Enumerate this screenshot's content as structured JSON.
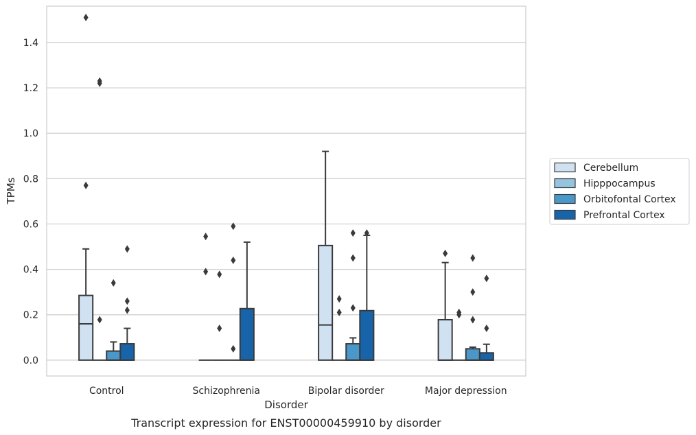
{
  "caption": "Transcript expression for ENST00000459910 by disorder",
  "chart_data": {
    "type": "box",
    "xlabel": "Disorder",
    "ylabel": "TPMs",
    "ylim": [
      -0.07,
      1.56
    ],
    "yticks": [
      "0.0",
      "0.2",
      "0.4",
      "0.6",
      "0.8",
      "1.0",
      "1.2",
      "1.4"
    ],
    "ytick_values": [
      0,
      0.2,
      0.4,
      0.6,
      0.8,
      1.0,
      1.2,
      1.4
    ],
    "grid": true,
    "legend_position": "right",
    "categories": [
      "Control",
      "Schizophrenia",
      "Bipolar disorder",
      "Major depression"
    ],
    "series": [
      {
        "name": "Cerebellum",
        "color": "#d0e1f2",
        "boxes": [
          {
            "q1": 0.0,
            "median": 0.16,
            "q3": 0.285,
            "whisker_low": 0.0,
            "whisker_high": 0.49,
            "outliers": [
              0.77,
              1.51
            ]
          },
          {
            "q1": 0.0,
            "median": 0.0,
            "q3": 0.0,
            "whisker_low": 0.0,
            "whisker_high": 0.0,
            "outliers": [
              0.39,
              0.545
            ]
          },
          {
            "q1": 0.0,
            "median": 0.155,
            "q3": 0.505,
            "whisker_low": 0.0,
            "whisker_high": 0.92,
            "outliers": []
          },
          {
            "q1": 0.0,
            "median": 0.0,
            "q3": 0.178,
            "whisker_low": 0.0,
            "whisker_high": 0.43,
            "outliers": [
              0.47
            ]
          }
        ]
      },
      {
        "name": "Hipppocampus",
        "color": "#94c4df",
        "boxes": [
          {
            "q1": 0.0,
            "median": 0.0,
            "q3": 0.0,
            "whisker_low": 0.0,
            "whisker_high": 0.0,
            "outliers": [
              0.178,
              1.22,
              1.23
            ]
          },
          {
            "q1": 0.0,
            "median": 0.0,
            "q3": 0.0,
            "whisker_low": 0.0,
            "whisker_high": 0.0,
            "outliers": [
              0.14,
              0.378
            ]
          },
          {
            "q1": 0.0,
            "median": 0.0,
            "q3": 0.0,
            "whisker_low": 0.0,
            "whisker_high": 0.0,
            "outliers": [
              0.21,
              0.27
            ]
          },
          {
            "q1": 0.0,
            "median": 0.0,
            "q3": 0.0,
            "whisker_low": 0.0,
            "whisker_high": 0.0,
            "outliers": [
              0.2,
              0.21
            ]
          }
        ]
      },
      {
        "name": "Orbitofontal Cortex",
        "color": "#4a98c9",
        "boxes": [
          {
            "q1": 0.0,
            "median": 0.0,
            "q3": 0.04,
            "whisker_low": 0.0,
            "whisker_high": 0.08,
            "outliers": [
              0.34
            ]
          },
          {
            "q1": 0.0,
            "median": 0.0,
            "q3": 0.0,
            "whisker_low": 0.0,
            "whisker_high": 0.0,
            "outliers": [
              0.05,
              0.44,
              0.59
            ]
          },
          {
            "q1": 0.0,
            "median": 0.0,
            "q3": 0.072,
            "whisker_low": 0.0,
            "whisker_high": 0.098,
            "outliers": [
              0.23,
              0.45,
              0.56
            ]
          },
          {
            "q1": 0.0,
            "median": 0.0,
            "q3": 0.05,
            "whisker_low": 0.0,
            "whisker_high": 0.057,
            "outliers": [
              0.178,
              0.3,
              0.45
            ]
          }
        ]
      },
      {
        "name": "Prefrontal Cortex",
        "color": "#1764ab",
        "boxes": [
          {
            "q1": 0.0,
            "median": 0.0,
            "q3": 0.072,
            "whisker_low": 0.0,
            "whisker_high": 0.14,
            "outliers": [
              0.22,
              0.26,
              0.49
            ]
          },
          {
            "q1": 0.0,
            "median": 0.0,
            "q3": 0.227,
            "whisker_low": 0.0,
            "whisker_high": 0.52,
            "outliers": []
          },
          {
            "q1": 0.0,
            "median": 0.0,
            "q3": 0.218,
            "whisker_low": 0.0,
            "whisker_high": 0.55,
            "outliers": [
              0.56
            ]
          },
          {
            "q1": 0.0,
            "median": 0.0,
            "q3": 0.032,
            "whisker_low": 0.0,
            "whisker_high": 0.07,
            "outliers": [
              0.14,
              0.36
            ]
          }
        ]
      }
    ]
  }
}
